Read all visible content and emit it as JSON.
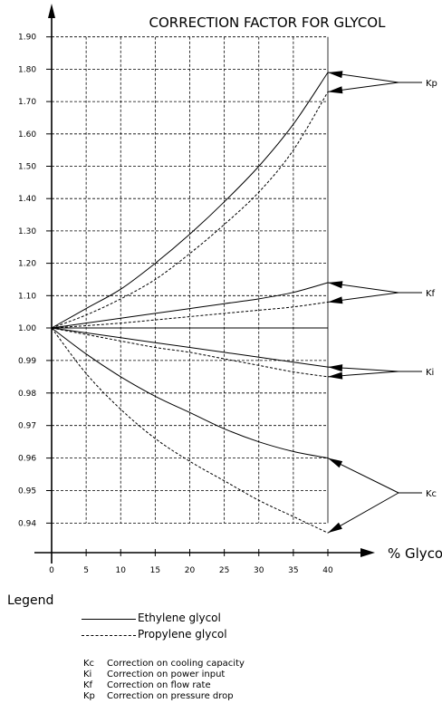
{
  "chart_data": {
    "type": "line",
    "title": "CORRECTION FACTOR FOR GLYCOL",
    "xlabel": "% Glycol",
    "ylabel": "",
    "x": [
      0,
      5,
      10,
      15,
      20,
      25,
      30,
      35,
      40
    ],
    "x_ticks": [
      "0",
      "5",
      "10",
      "15",
      "20",
      "25",
      "30",
      "35",
      "40"
    ],
    "y_ticks": [
      "0.94",
      "0.95",
      "0.96",
      "0.97",
      "0.98",
      "0.99",
      "1.00",
      "1.10",
      "1.20",
      "1.30",
      "1.40",
      "1.50",
      "1.60",
      "1.70",
      "1.80",
      "1.90"
    ],
    "grid": true,
    "series": [
      {
        "name": "Kp",
        "style": "solid",
        "values": [
          1.0,
          1.06,
          1.12,
          1.2,
          1.29,
          1.39,
          1.5,
          1.63,
          1.79
        ]
      },
      {
        "name": "Kp",
        "style": "dashed",
        "values": [
          1.0,
          1.04,
          1.09,
          1.15,
          1.23,
          1.32,
          1.42,
          1.55,
          1.73
        ]
      },
      {
        "name": "Kf",
        "style": "solid",
        "values": [
          1.0,
          1.015,
          1.03,
          1.045,
          1.06,
          1.075,
          1.09,
          1.11,
          1.14
        ]
      },
      {
        "name": "Kf",
        "style": "dashed",
        "values": [
          1.0,
          1.007,
          1.015,
          1.025,
          1.035,
          1.045,
          1.055,
          1.065,
          1.08
        ]
      },
      {
        "name": "Ki",
        "style": "solid",
        "values": [
          1.0,
          0.9985,
          0.997,
          0.9955,
          0.994,
          0.9925,
          0.991,
          0.9895,
          0.988
        ]
      },
      {
        "name": "Ki",
        "style": "dashed",
        "values": [
          1.0,
          0.998,
          0.996,
          0.994,
          0.9925,
          0.9905,
          0.9885,
          0.9865,
          0.985
        ]
      },
      {
        "name": "Kc",
        "style": "solid",
        "values": [
          1.0,
          0.992,
          0.985,
          0.979,
          0.974,
          0.969,
          0.965,
          0.962,
          0.96
        ]
      },
      {
        "name": "Kc",
        "style": "dashed",
        "values": [
          1.0,
          0.986,
          0.975,
          0.966,
          0.959,
          0.953,
          0.947,
          0.942,
          0.937
        ]
      }
    ],
    "labels": [
      "Kp",
      "Kf",
      "Ki",
      "Kc"
    ]
  },
  "legend": {
    "title": "Legend",
    "ethylene": "Ethylene glycol",
    "propylene": "Propylene glycol",
    "abbreviations": [
      {
        "code": "Kc",
        "text": "Correction on cooling capacity"
      },
      {
        "code": "Ki",
        "text": "Correction on power input"
      },
      {
        "code": "Kf",
        "text": "Correction on flow rate"
      },
      {
        "code": "Kp",
        "text": "Correction on pressure drop"
      }
    ]
  }
}
